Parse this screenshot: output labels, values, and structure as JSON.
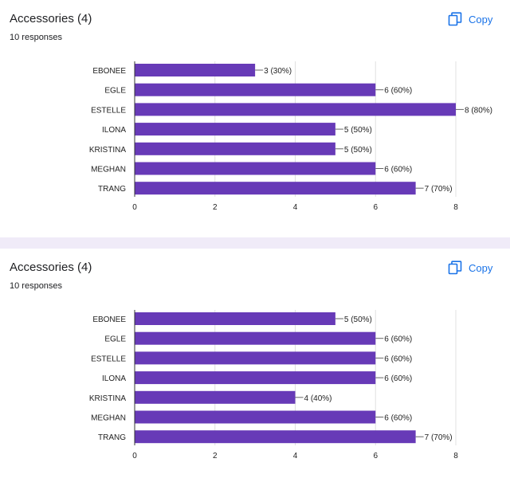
{
  "cards": [
    {
      "title": "Accessories (4)",
      "subtitle": "10 responses",
      "copy_label": "Copy",
      "icon": "copy-icon"
    },
    {
      "title": "Accessories (4)",
      "subtitle": "10 responses",
      "copy_label": "Copy",
      "icon": "copy-icon"
    }
  ],
  "colors": {
    "bar": "#673ab7",
    "link": "#1a73e8",
    "separator": "#f0ebf8",
    "axis": "#333333",
    "grid": "#e0e0e0",
    "label": "#222222"
  },
  "chart_data": [
    {
      "type": "bar",
      "orientation": "horizontal",
      "categories": [
        "EBONEE",
        "EGLE",
        "ESTELLE",
        "ILONA",
        "KRISTINA",
        "MEGHAN",
        "TRANG"
      ],
      "values": [
        3,
        6,
        8,
        5,
        5,
        6,
        7
      ],
      "data_labels": [
        "3 (30%)",
        "6 (60%)",
        "8 (80%)",
        "5 (50%)",
        "5 (50%)",
        "6 (60%)",
        "7 (70%)"
      ],
      "xlim": [
        0,
        8
      ],
      "x_ticks": [
        0,
        2,
        4,
        6,
        8
      ],
      "grid": true
    },
    {
      "type": "bar",
      "orientation": "horizontal",
      "categories": [
        "EBONEE",
        "EGLE",
        "ESTELLE",
        "ILONA",
        "KRISTINA",
        "MEGHAN",
        "TRANG"
      ],
      "values": [
        5,
        6,
        6,
        6,
        4,
        6,
        7
      ],
      "data_labels": [
        "5 (50%)",
        "6 (60%)",
        "6 (60%)",
        "6 (60%)",
        "4 (40%)",
        "6 (60%)",
        "7 (70%)"
      ],
      "xlim": [
        0,
        8
      ],
      "x_ticks": [
        0,
        2,
        4,
        6,
        8
      ],
      "grid": true
    }
  ]
}
